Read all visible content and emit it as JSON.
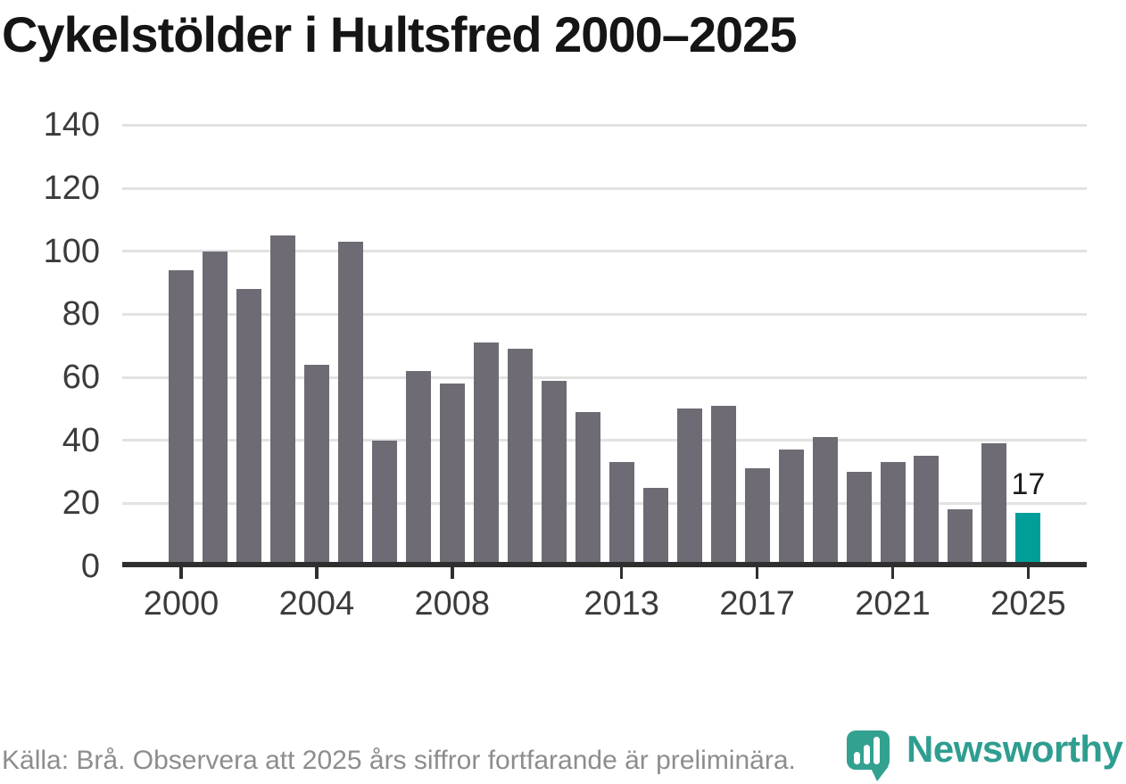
{
  "title": "Cykelstölder i Hultsfred 2000–2025",
  "chart_data": {
    "type": "bar",
    "title": "Cykelstölder i Hultsfred 2000–2025",
    "x": [
      2000,
      2001,
      2002,
      2003,
      2004,
      2005,
      2006,
      2007,
      2008,
      2009,
      2010,
      2011,
      2012,
      2013,
      2014,
      2015,
      2016,
      2017,
      2018,
      2019,
      2020,
      2021,
      2022,
      2023,
      2024,
      2025
    ],
    "values": [
      94,
      100,
      88,
      105,
      64,
      103,
      40,
      62,
      58,
      71,
      69,
      59,
      49,
      33,
      25,
      50,
      51,
      31,
      37,
      41,
      30,
      33,
      35,
      18,
      39,
      17
    ],
    "xlabel": "",
    "ylabel": "",
    "ylim": [
      0,
      140
    ],
    "yticks": [
      0,
      20,
      40,
      60,
      80,
      100,
      120,
      140
    ],
    "xticks": [
      2000,
      2004,
      2008,
      2013,
      2017,
      2021,
      2025
    ],
    "grid": "horizontal",
    "legend": "none",
    "bar_color": "#6f6b74",
    "highlight": {
      "year": 2025,
      "value": 17,
      "value_label": "17",
      "color": "#009e99"
    }
  },
  "footer": {
    "source_note": "Källa: Brå. Observera att 2025 års siffror fortfarande är preliminära."
  },
  "branding": {
    "logo_text": "Newsworthy",
    "logo_color": "#2e9e90",
    "icon_color": "#33a18f",
    "icon_name": "newsworthy-bar-chart-pin-icon"
  }
}
